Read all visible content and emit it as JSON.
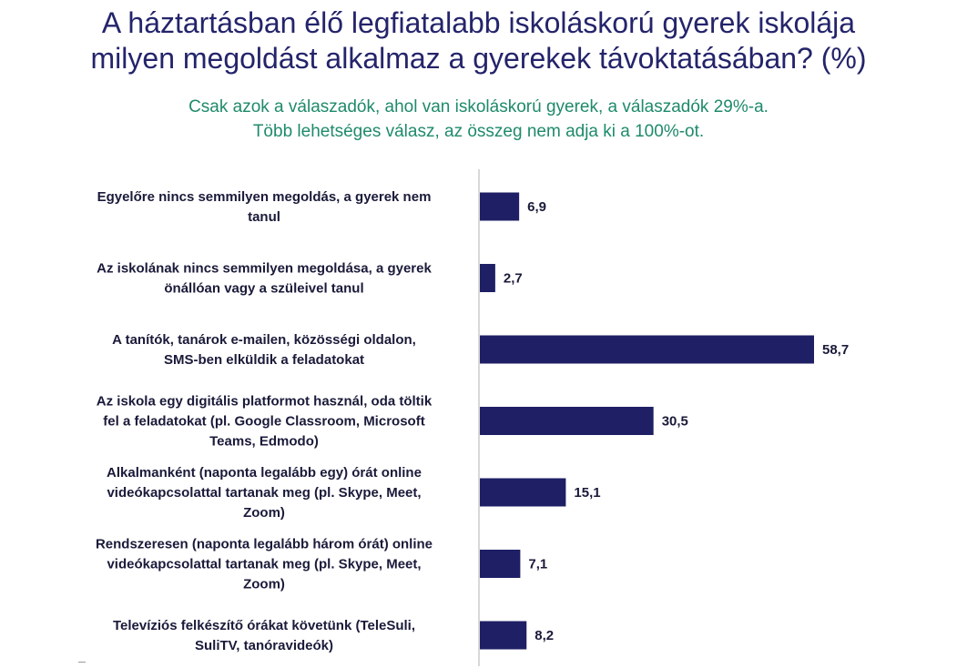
{
  "header": {
    "title_line1": "A háztartásban élő legfiatalabb iskoláskorú gyerek iskolája",
    "title_line2": "milyen megoldást alkalmaz a gyerekek távoktatásában? (%)",
    "subtitle_line1": "Csak azok a válaszadók, ahol van iskoláskorú gyerek, a válaszadók 29%-a.",
    "subtitle_line2": "Több lehetséges válasz, az összeg nem adja ki a 100%-ot."
  },
  "colors": {
    "bar": "#1f1f66",
    "title": "#24246b",
    "subtitle": "#1f8a6b",
    "axis": "#b0b0b0"
  },
  "chart_data": {
    "type": "bar",
    "orientation": "horizontal",
    "categories": [
      [
        "Egyelőre nincs semmilyen megoldás, a gyerek nem",
        "tanul"
      ],
      [
        "Az iskolának nincs semmilyen megoldása, a gyerek",
        "önállóan vagy a szüleivel tanul"
      ],
      [
        "A tanítók, tanárok e-mailen, közösségi oldalon,",
        "SMS-ben elküldik a feladatokat"
      ],
      [
        "Az iskola egy digitális platformot használ, oda töltik",
        "fel a feladatokat (pl. Google Classroom, Microsoft",
        "Teams, Edmodo)"
      ],
      [
        "Alkalmanként (naponta legalább egy) órát online",
        "videókapcsolattal tartanak meg (pl. Skype, Meet,",
        "Zoom)"
      ],
      [
        "Rendszeresen (naponta legalább három órát) online",
        "videókapcsolattal tartanak meg (pl. Skype, Meet,",
        "Zoom)"
      ],
      [
        "Televíziós felkészítő órákat követünk (TeleSuli,",
        "SuliTV, tanóravideók)"
      ]
    ],
    "values": [
      6.9,
      2.7,
      58.7,
      30.5,
      15.1,
      7.1,
      8.2
    ],
    "value_labels": [
      "6,9",
      "2,7",
      "58,7",
      "30,5",
      "15,1",
      "7,1",
      "8,2"
    ],
    "xlim": [
      0,
      60
    ],
    "grid": false,
    "legend": "none"
  }
}
